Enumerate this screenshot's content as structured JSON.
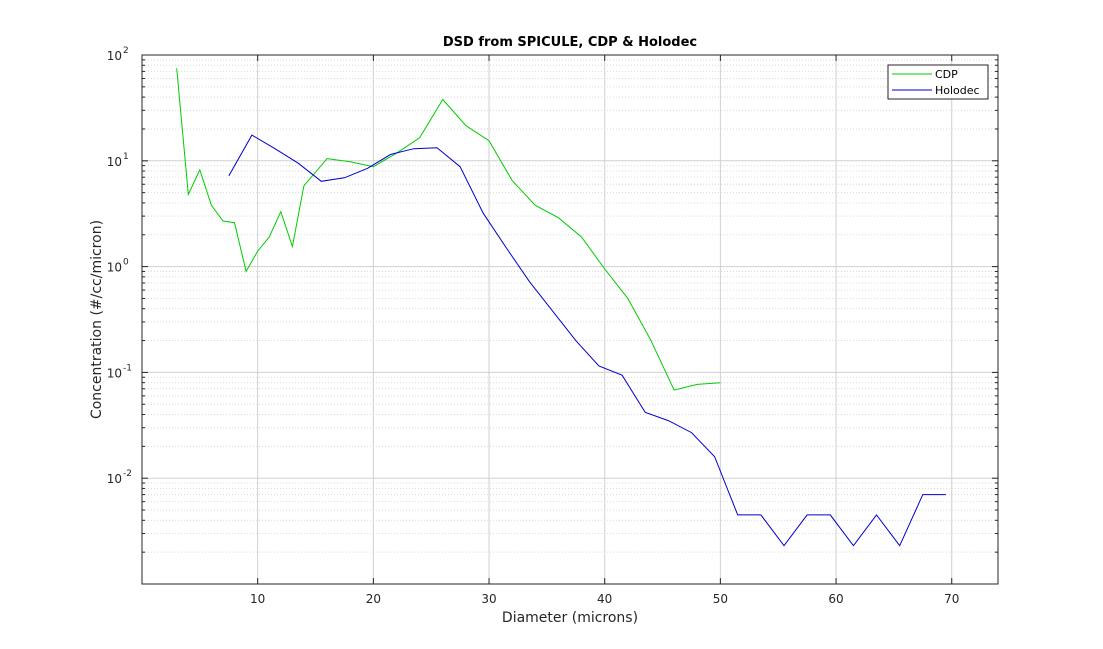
{
  "chart_data": {
    "type": "line",
    "title": "DSD from SPICULE, CDP & Holodec",
    "xlabel": "Diameter (microns)",
    "ylabel": "Concentration (#/cc/micron)",
    "xlim": [
      0,
      74
    ],
    "ylim": [
      0.001,
      100
    ],
    "yscale": "log",
    "grid": true,
    "minor_grid": true,
    "legend_position": "top-right",
    "x_ticks": [
      10,
      20,
      30,
      40,
      50,
      60,
      70
    ],
    "x_tick_labels": [
      "10",
      "20",
      "30",
      "40",
      "50",
      "60",
      "70"
    ],
    "y_ticks": [
      0.01,
      0.1,
      1,
      10,
      100
    ],
    "y_tick_labels": [
      {
        "base": "10",
        "exp": "-2"
      },
      {
        "base": "10",
        "exp": "-1"
      },
      {
        "base": "10",
        "exp": "0"
      },
      {
        "base": "10",
        "exp": "1"
      },
      {
        "base": "10",
        "exp": "2"
      }
    ],
    "series": [
      {
        "name": "CDP",
        "color": "#00cc00",
        "x": [
          3,
          4,
          5,
          6,
          7,
          8,
          9,
          10,
          11,
          12,
          13,
          14,
          16,
          18,
          20,
          22,
          24,
          26,
          28,
          30,
          32,
          34,
          36,
          38,
          40,
          42,
          44,
          46,
          48,
          50
        ],
        "y": [
          75,
          4.8,
          8.2,
          3.8,
          2.7,
          2.6,
          0.9,
          1.4,
          1.9,
          3.3,
          1.55,
          5.8,
          10.5,
          9.8,
          8.8,
          11.8,
          16.5,
          38,
          21.5,
          15.5,
          6.5,
          3.8,
          2.9,
          1.9,
          0.95,
          0.5,
          0.2,
          0.068,
          0.077,
          0.08
        ]
      },
      {
        "name": "Holodec",
        "color": "#0000cc",
        "x": [
          7.5,
          9.5,
          11.5,
          13.5,
          15.5,
          17.5,
          19.5,
          21.5,
          23.5,
          25.5,
          27.5,
          29.5,
          31.5,
          33.5,
          35.5,
          37.5,
          39.5,
          41.5,
          43.5,
          45.5,
          47.5,
          49.5,
          51.5,
          53.5,
          55.5,
          57.5,
          59.5,
          61.5,
          63.5,
          65.5,
          67.5,
          69.5
        ],
        "y": [
          7.2,
          17.5,
          13.0,
          9.5,
          6.4,
          6.9,
          8.5,
          11.5,
          13.0,
          13.3,
          8.8,
          3.2,
          1.5,
          0.72,
          0.38,
          0.2,
          0.115,
          0.094,
          0.042,
          0.035,
          0.027,
          0.016,
          0.0045,
          0.0045,
          0.0023,
          0.0045,
          0.0045,
          0.0023,
          0.0045,
          0.0023,
          0.007,
          0.007
        ]
      }
    ]
  }
}
